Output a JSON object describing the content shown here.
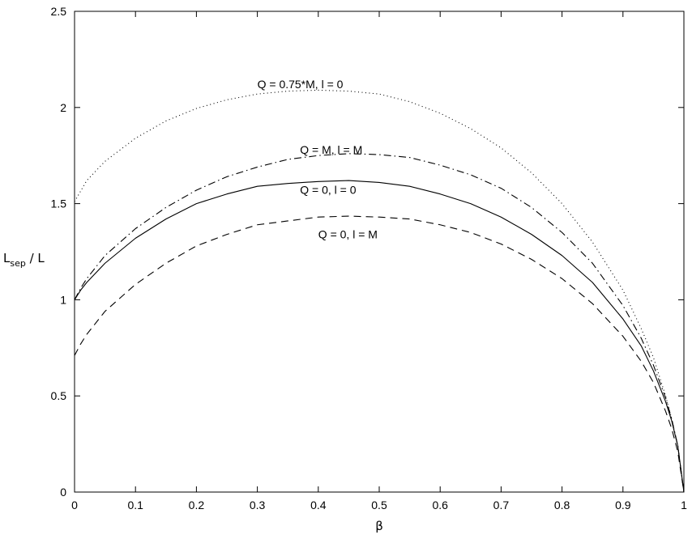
{
  "chart_data": {
    "type": "line",
    "title": "",
    "xlabel": "β",
    "ylabel": {
      "main": "L",
      "sub": "sep",
      "suffix": " / L"
    },
    "xlim": [
      0,
      1
    ],
    "ylim": [
      0,
      2.5
    ],
    "xticks": [
      0,
      0.1,
      0.2,
      0.3,
      0.4,
      0.5,
      0.6,
      0.7,
      0.8,
      0.9,
      1
    ],
    "xtick_labels": [
      "0",
      "0.1",
      "0.2",
      "0.3",
      "0.4",
      "0.5",
      "0.6",
      "0.7",
      "0.8",
      "0.9",
      "1"
    ],
    "yticks": [
      0,
      0.5,
      1,
      1.5,
      2,
      2.5
    ],
    "ytick_labels": [
      "0",
      "0.5",
      "1",
      "1.5",
      "2",
      "2.5"
    ],
    "grid": false,
    "series": [
      {
        "label": "Q = 0.75*M, l = 0",
        "style": "dotted",
        "x": [
          0,
          0.02,
          0.05,
          0.1,
          0.15,
          0.2,
          0.25,
          0.3,
          0.35,
          0.4,
          0.45,
          0.5,
          0.55,
          0.6,
          0.65,
          0.7,
          0.75,
          0.8,
          0.85,
          0.9,
          0.93,
          0.95,
          0.97,
          0.98,
          0.99,
          1.0
        ],
        "y": [
          1.51,
          1.62,
          1.72,
          1.84,
          1.93,
          1.995,
          2.04,
          2.07,
          2.085,
          2.09,
          2.085,
          2.07,
          2.03,
          1.97,
          1.89,
          1.79,
          1.66,
          1.5,
          1.3,
          1.05,
          0.85,
          0.7,
          0.5,
          0.38,
          0.24,
          0.0
        ]
      },
      {
        "label": "Q = M, l = M",
        "style": "dashdot",
        "x": [
          0,
          0.01,
          0.02,
          0.05,
          0.1,
          0.15,
          0.2,
          0.25,
          0.3,
          0.35,
          0.4,
          0.45,
          0.5,
          0.55,
          0.6,
          0.65,
          0.7,
          0.75,
          0.8,
          0.85,
          0.9,
          0.93,
          0.95,
          0.97,
          0.98,
          0.99,
          1.0
        ],
        "y": [
          1.0,
          1.06,
          1.11,
          1.23,
          1.37,
          1.48,
          1.57,
          1.64,
          1.69,
          1.73,
          1.75,
          1.76,
          1.755,
          1.74,
          1.7,
          1.65,
          1.58,
          1.48,
          1.35,
          1.19,
          0.97,
          0.8,
          0.66,
          0.49,
          0.38,
          0.24,
          0.0
        ]
      },
      {
        "label": "Q = 0, l = 0",
        "style": "solid",
        "x": [
          0,
          0.01,
          0.02,
          0.05,
          0.1,
          0.15,
          0.2,
          0.25,
          0.3,
          0.35,
          0.4,
          0.45,
          0.5,
          0.55,
          0.6,
          0.65,
          0.7,
          0.75,
          0.8,
          0.85,
          0.9,
          0.93,
          0.95,
          0.97,
          0.98,
          0.99,
          1.0
        ],
        "y": [
          1.0,
          1.05,
          1.09,
          1.19,
          1.32,
          1.42,
          1.5,
          1.55,
          1.59,
          1.605,
          1.615,
          1.62,
          1.61,
          1.59,
          1.55,
          1.5,
          1.43,
          1.34,
          1.23,
          1.09,
          0.9,
          0.76,
          0.63,
          0.47,
          0.37,
          0.24,
          0.0
        ]
      },
      {
        "label": "Q = 0, l = M",
        "style": "dashed",
        "x": [
          0,
          0.01,
          0.02,
          0.05,
          0.1,
          0.15,
          0.2,
          0.25,
          0.3,
          0.35,
          0.4,
          0.45,
          0.5,
          0.55,
          0.6,
          0.65,
          0.7,
          0.75,
          0.8,
          0.85,
          0.9,
          0.93,
          0.95,
          0.97,
          0.98,
          0.99,
          1.0
        ],
        "y": [
          0.71,
          0.77,
          0.82,
          0.94,
          1.08,
          1.19,
          1.28,
          1.34,
          1.39,
          1.41,
          1.43,
          1.435,
          1.43,
          1.42,
          1.39,
          1.35,
          1.29,
          1.21,
          1.11,
          0.98,
          0.81,
          0.68,
          0.57,
          0.42,
          0.33,
          0.21,
          0.0
        ]
      }
    ],
    "annotations": [
      {
        "text": "Q = 0.75*M, l = 0",
        "x": 0.3,
        "y": 2.1
      },
      {
        "text": "Q = M, l = M",
        "x": 0.37,
        "y": 1.76
      },
      {
        "text": "Q = 0, l = 0",
        "x": 0.37,
        "y": 1.55
      },
      {
        "text": "Q = 0, l = M",
        "x": 0.4,
        "y": 1.32
      }
    ]
  }
}
